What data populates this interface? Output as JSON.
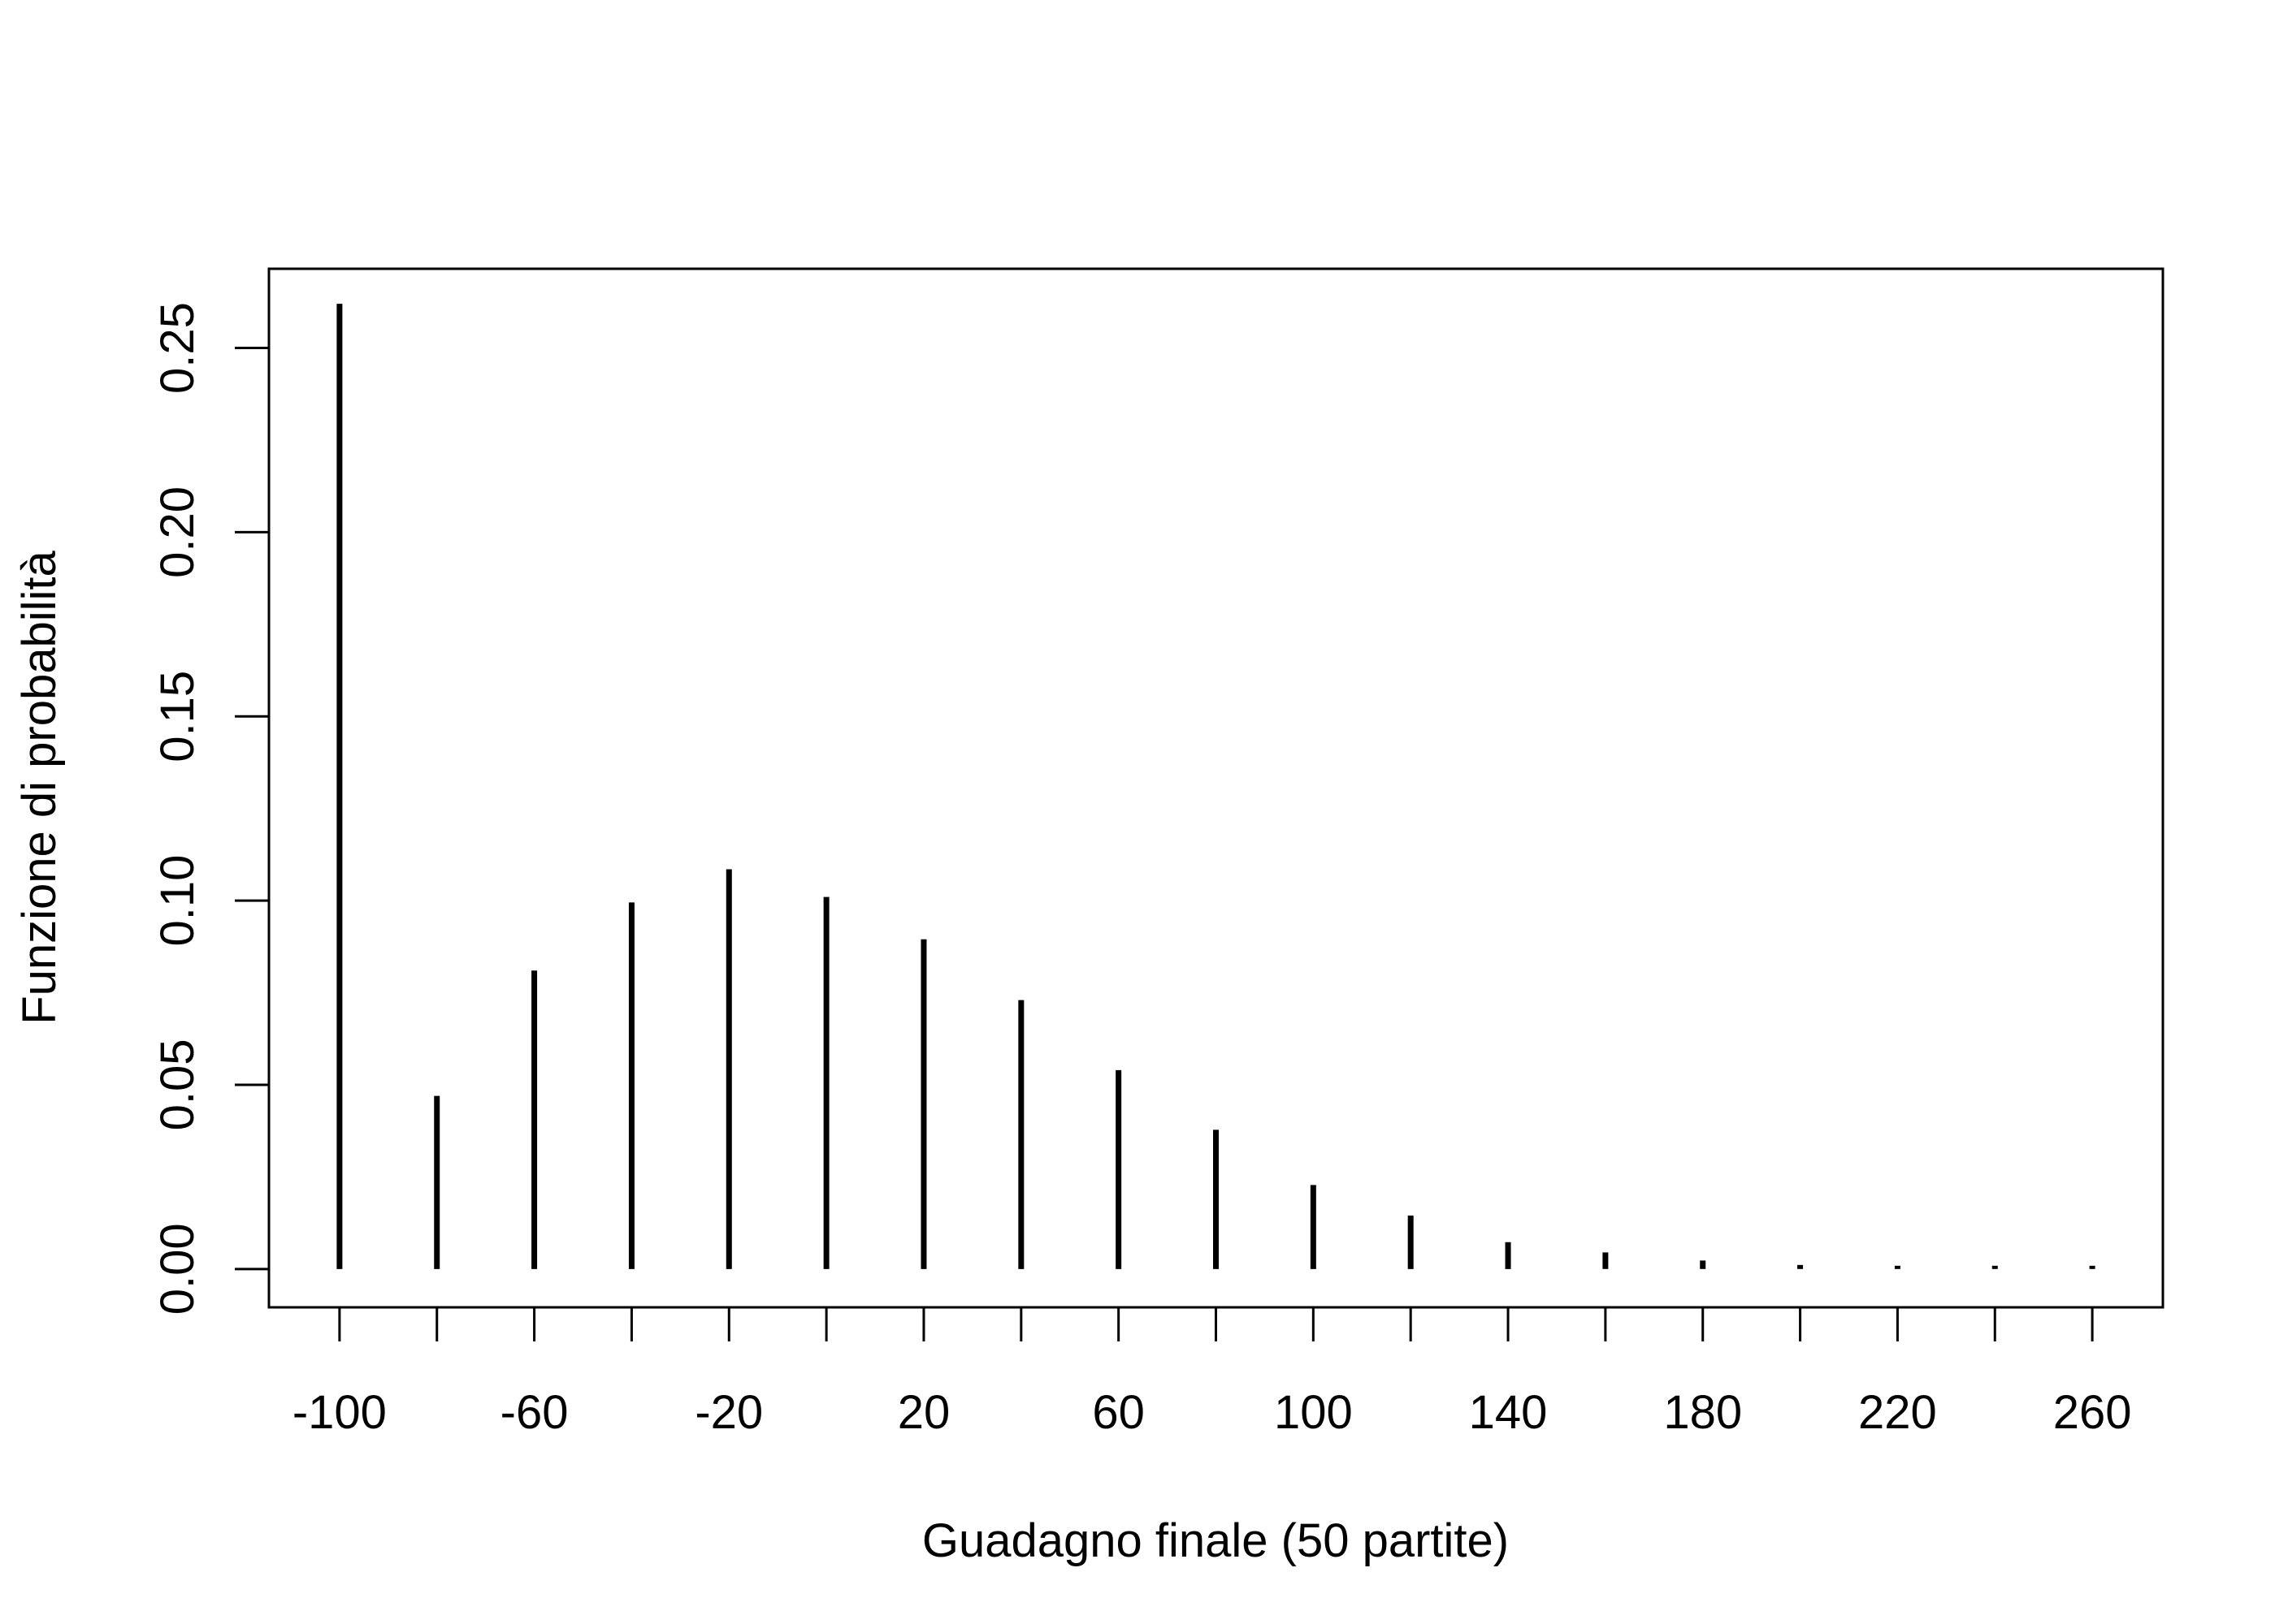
{
  "chart_data": {
    "type": "bar",
    "style": "probability mass function (vertical lines)",
    "title": "",
    "xlabel": "Guadagno finale (50 partite)",
    "ylabel": "Funzione di probabilità",
    "xlim": [
      -114.5,
      274.5
    ],
    "ylim": [
      -0.0104,
      0.2715
    ],
    "x": [
      -100,
      -80,
      -60,
      -40,
      -20,
      0,
      20,
      40,
      60,
      80,
      100,
      120,
      140,
      160,
      180,
      200,
      220,
      240,
      260
    ],
    "values": [
      0.262,
      0.047,
      0.081,
      0.0995,
      0.1085,
      0.101,
      0.0895,
      0.073,
      0.054,
      0.0378,
      0.0228,
      0.0145,
      0.0073,
      0.0045,
      0.0023,
      0.0011,
      0.0005,
      0.0002,
      0.0001
    ],
    "x_ticks": [
      -100,
      -80,
      -60,
      -40,
      -20,
      0,
      20,
      40,
      60,
      80,
      100,
      120,
      140,
      160,
      180,
      200,
      220,
      240,
      260
    ],
    "x_tick_labels": [
      "-100",
      "-60",
      "-20",
      "20",
      "60",
      "100",
      "140",
      "180",
      "220",
      "260"
    ],
    "x_tick_label_values": [
      -100,
      -60,
      -20,
      20,
      60,
      100,
      140,
      180,
      220,
      260
    ],
    "y_ticks": [
      0.0,
      0.05,
      0.1,
      0.15,
      0.2,
      0.25
    ],
    "y_tick_labels": [
      "0.00",
      "0.05",
      "0.10",
      "0.15",
      "0.20",
      "0.25"
    ],
    "grid": false,
    "legend": "none",
    "color": "#000000"
  }
}
